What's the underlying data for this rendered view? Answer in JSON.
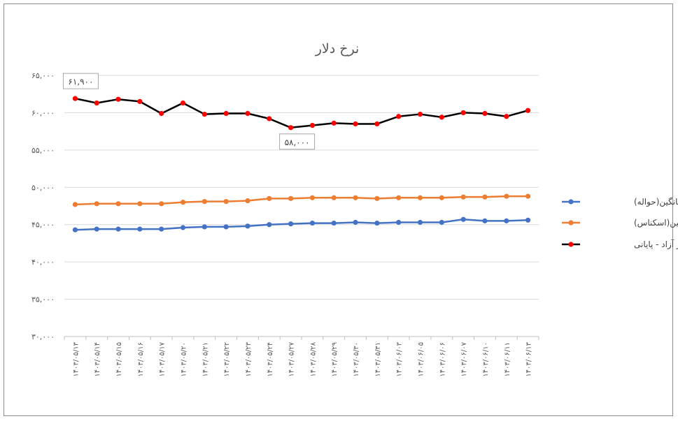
{
  "chart_data": {
    "type": "line",
    "title": "نرخ دلار",
    "xlabel": "",
    "ylabel": "",
    "ylim": [
      30000,
      65000
    ],
    "yticks": [
      30000,
      35000,
      40000,
      45000,
      50000,
      55000,
      60000,
      65000
    ],
    "ytick_labels": [
      "۳۰,۰۰۰",
      "۳۵,۰۰۰",
      "۴۰,۰۰۰",
      "۴۵,۰۰۰",
      "۵۰,۰۰۰",
      "۵۵,۰۰۰",
      "۶۰,۰۰۰",
      "۶۵,۰۰۰"
    ],
    "grid": true,
    "legend_position": "right",
    "categories": [
      "۱۴۰۳/۰۵/۱۳",
      "۱۴۰۳/۰۵/۱۴",
      "۱۴۰۳/۰۵/۱۵",
      "۱۴۰۳/۰۵/۱۶",
      "۱۴۰۳/۰۵/۱۷",
      "۱۴۰۳/۰۵/۲۰",
      "۱۴۰۳/۰۵/۲۱",
      "۱۴۰۳/۰۵/۲۲",
      "۱۴۰۳/۰۵/۲۳",
      "۱۴۰۳/۰۵/۲۴",
      "۱۴۰۳/۰۵/۲۷",
      "۱۴۰۳/۰۵/۲۸",
      "۱۴۰۳/۰۵/۲۹",
      "۱۴۰۳/۰۵/۳۰",
      "۱۴۰۳/۰۵/۳۱",
      "۱۴۰۳/۰۶/۰۳",
      "۱۴۰۳/۰۶/۰۵",
      "۱۴۰۳/۰۶/۰۶",
      "۱۴۰۳/۰۶/۰۷",
      "۱۴۰۳/۰۶/۱۰",
      "۱۴۰۳/۰۶/۱۱",
      "۱۴۰۳/۰۶/۱۳"
    ],
    "series": [
      {
        "name": "میانگین(حواله)",
        "color": "#4472c4",
        "marker_color": "#4472c4",
        "values": [
          44300,
          44400,
          44400,
          44400,
          44400,
          44600,
          44700,
          44700,
          44800,
          45000,
          45100,
          45200,
          45200,
          45300,
          45200,
          45300,
          45300,
          45300,
          45700,
          45500,
          45500,
          45600
        ]
      },
      {
        "name": "میانگین(اسکناس)",
        "color": "#ed7d31",
        "marker_color": "#ed7d31",
        "values": [
          47700,
          47800,
          47800,
          47800,
          47800,
          48000,
          48100,
          48100,
          48200,
          48500,
          48500,
          48600,
          48600,
          48600,
          48500,
          48600,
          48600,
          48600,
          48700,
          48700,
          48800,
          48800
        ]
      },
      {
        "name": "بازار آزاد - پایانی",
        "color": "#000000",
        "marker_color": "#ff0000",
        "values": [
          61900,
          61300,
          61800,
          61500,
          59900,
          61300,
          59800,
          59900,
          59900,
          59200,
          58000,
          58300,
          58600,
          58500,
          58500,
          59500,
          59800,
          59400,
          60000,
          59900,
          59500,
          60300
        ]
      }
    ],
    "annotations": [
      {
        "series": 2,
        "index": 0,
        "text": "۶۱,۹۰۰"
      },
      {
        "series": 2,
        "index": 10,
        "text": "۵۸,۰۰۰"
      }
    ]
  }
}
